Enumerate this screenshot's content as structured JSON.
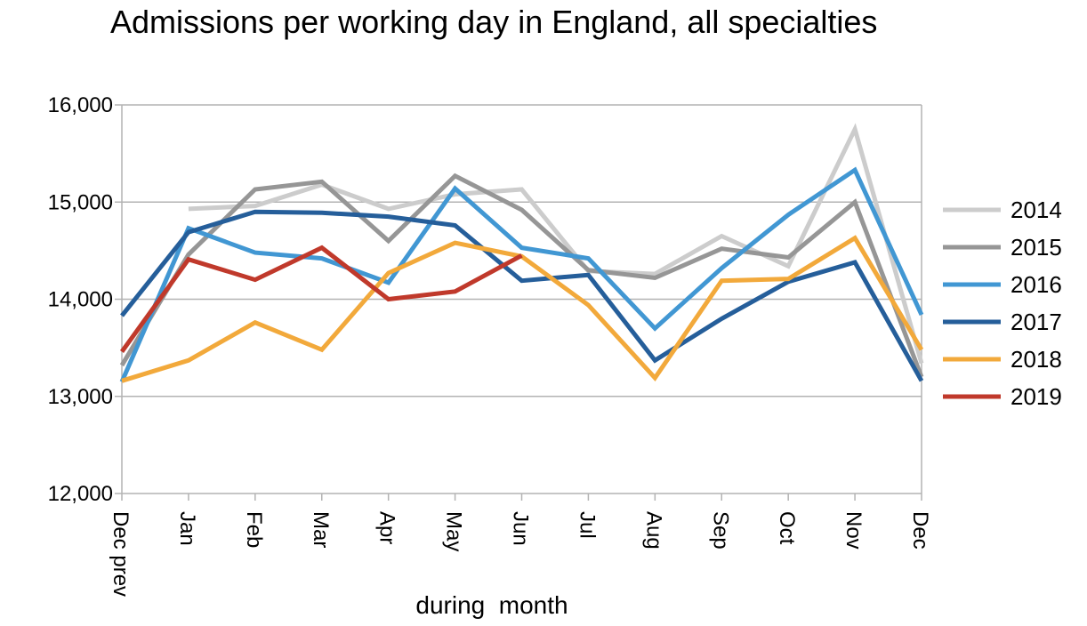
{
  "chart_data": {
    "type": "line",
    "title": "Admissions per working day in England, all specialties",
    "xlabel": "during  month",
    "ylabel": "",
    "categories": [
      "Dec prev",
      "Jan",
      "Feb",
      "Mar",
      "Apr",
      "May",
      "Jun",
      "Jul",
      "Aug",
      "Sep",
      "Oct",
      "Nov",
      "Dec"
    ],
    "ylim": [
      12000,
      16000
    ],
    "yticks": [
      12000,
      13000,
      14000,
      15000,
      16000
    ],
    "ytick_labels": [
      "12,000",
      "13,000",
      "14,000",
      "15,000",
      "16,000"
    ],
    "grid": true,
    "legend_position": "right",
    "series": [
      {
        "name": "2014",
        "color": "#cccccc",
        "values": [
          null,
          14930,
          14960,
          15180,
          14930,
          15080,
          15130,
          14290,
          14260,
          14650,
          14340,
          15750,
          13340
        ]
      },
      {
        "name": "2015",
        "color": "#969696",
        "values": [
          13320,
          14460,
          15130,
          15210,
          14600,
          15270,
          14920,
          14300,
          14220,
          14520,
          14430,
          15000,
          13200
        ]
      },
      {
        "name": "2016",
        "color": "#4197d3",
        "values": [
          13150,
          14730,
          14480,
          14420,
          14170,
          15140,
          14530,
          14420,
          13700,
          14320,
          14870,
          15330,
          13840
        ]
      },
      {
        "name": "2017",
        "color": "#255e9a",
        "values": [
          13830,
          14690,
          14900,
          14890,
          14850,
          14760,
          14190,
          14250,
          13370,
          13800,
          14180,
          14380,
          13160
        ]
      },
      {
        "name": "2018",
        "color": "#f2a93b",
        "values": [
          13160,
          13370,
          13760,
          13480,
          14270,
          14580,
          14440,
          13940,
          13190,
          14190,
          14210,
          14630,
          13480
        ]
      },
      {
        "name": "2019",
        "color": "#c0392b",
        "values": [
          13460,
          14410,
          14200,
          14530,
          14000,
          14080,
          14450,
          null,
          null,
          null,
          null,
          null,
          null
        ]
      }
    ]
  }
}
